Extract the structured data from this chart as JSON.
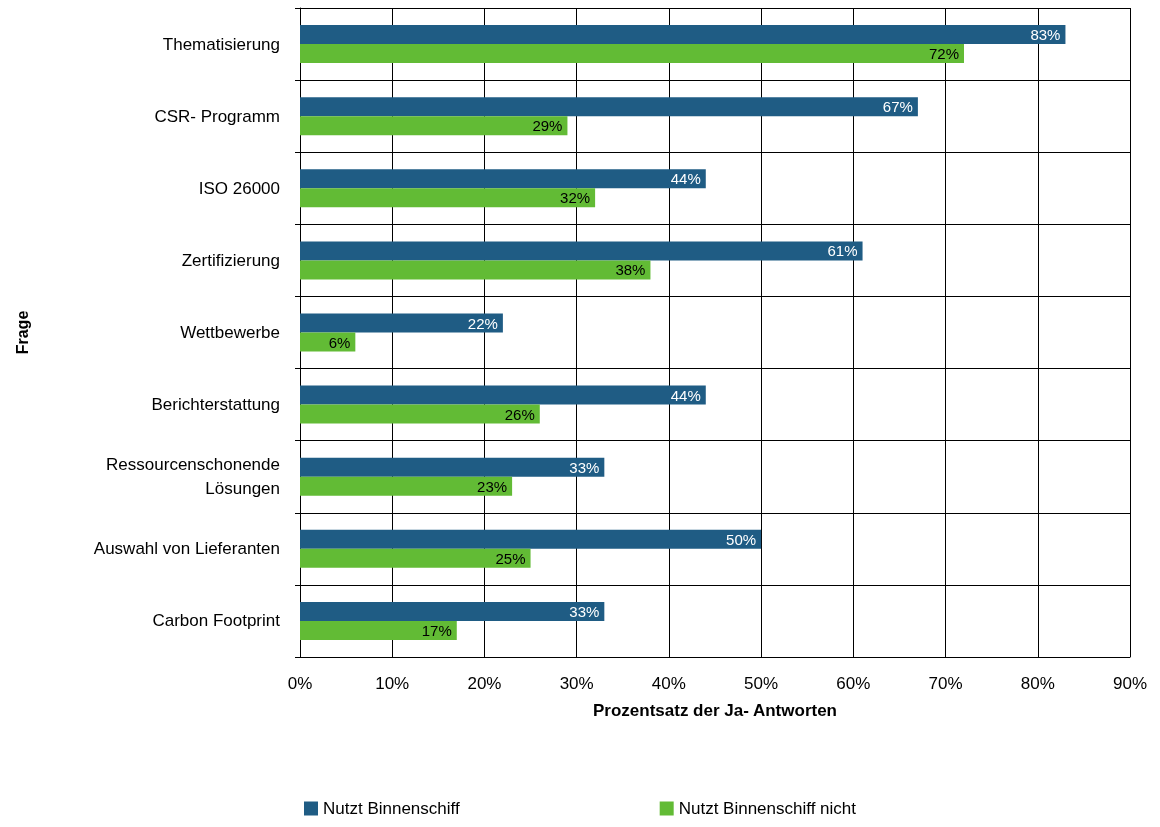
{
  "chart_data": {
    "type": "bar",
    "orientation": "horizontal",
    "xlabel": "Prozentsatz der Ja- Antworten",
    "ylabel": "Frage",
    "categories": [
      "Thematisierung",
      "CSR- Programm",
      "ISO 26000",
      "Zertifizierung",
      "Wettbewerbe",
      "Berichterstattung",
      "Ressourcenschonende\nLösungen",
      "Auswahl von Lieferanten",
      "Carbon Footprint"
    ],
    "series": [
      {
        "name": "Nutzt Binnenschiff",
        "color": "#1f5c84",
        "values": [
          83,
          67,
          44,
          61,
          22,
          44,
          33,
          50,
          33
        ],
        "value_labels": [
          "83%",
          "67%",
          "44%",
          "61%",
          "22%",
          "44%",
          "33%",
          "50%",
          "33%"
        ]
      },
      {
        "name": "Nutzt Binnenschiff nicht",
        "color": "#62bb35",
        "values": [
          72,
          29,
          32,
          38,
          6,
          26,
          23,
          25,
          17
        ],
        "value_labels": [
          "72%",
          "29%",
          "32%",
          "38%",
          "6%",
          "26%",
          "23%",
          "25%",
          "17%"
        ]
      }
    ],
    "xlim": [
      0,
      90
    ],
    "xticks": [
      {
        "value": 0,
        "label": "0%"
      },
      {
        "value": 10,
        "label": "10%"
      },
      {
        "value": 20,
        "label": "20%"
      },
      {
        "value": 30,
        "label": "30%"
      },
      {
        "value": 40,
        "label": "40%"
      },
      {
        "value": 50,
        "label": "50%"
      },
      {
        "value": 60,
        "label": "60%"
      },
      {
        "value": 70,
        "label": "70%"
      },
      {
        "value": 80,
        "label": "80%"
      },
      {
        "value": 90,
        "label": "90%"
      }
    ],
    "grid": true,
    "legend": "bottom"
  }
}
